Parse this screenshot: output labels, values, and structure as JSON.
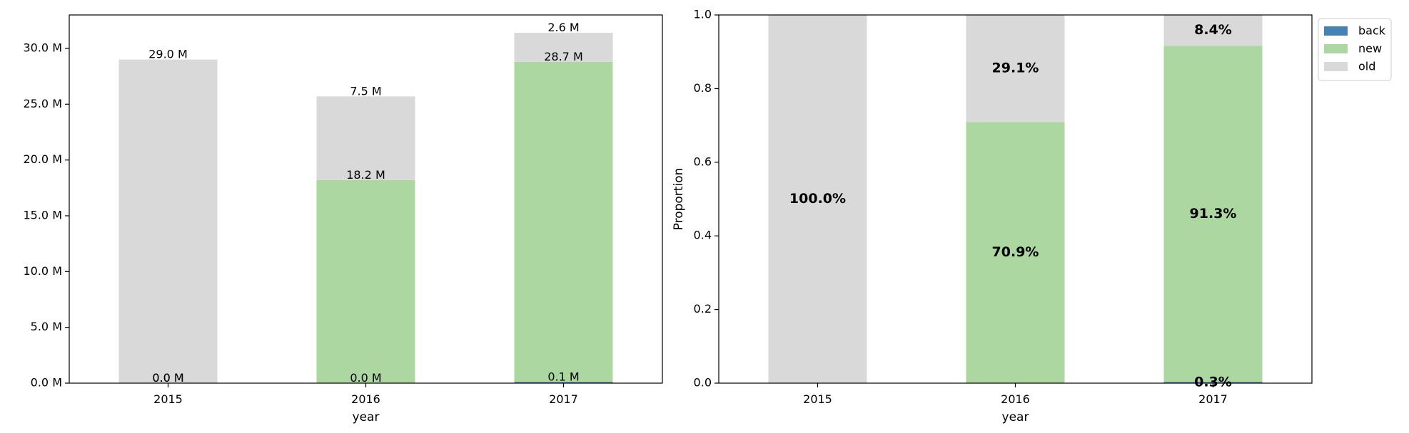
{
  "chart_data": [
    {
      "type": "bar",
      "stacked": true,
      "categories": [
        "2015",
        "2016",
        "2017"
      ],
      "xlabel": "year",
      "ylabel": "",
      "ylim": [
        0,
        33
      ],
      "yticks": [
        0,
        5,
        10,
        15,
        20,
        25,
        30
      ],
      "ytick_labels": [
        "0.0 M",
        "5.0 M",
        "10.0 M",
        "15.0 M",
        "20.0 M",
        "25.0 M",
        "30.0 M"
      ],
      "series": [
        {
          "key": "back",
          "color": "#4682b4",
          "values": [
            0.0,
            0.0,
            0.1
          ],
          "labels": [
            "0.0 M",
            "0.0 M",
            "0.1 M"
          ]
        },
        {
          "key": "new",
          "color": "#acd7a1",
          "values": [
            0.0,
            18.2,
            28.7
          ],
          "labels": [
            "0.0 M",
            "18.2 M",
            "28.7 M"
          ]
        },
        {
          "key": "old",
          "color": "#d9d9d9",
          "values": [
            29.0,
            7.5,
            2.6
          ],
          "labels": [
            "29.0 M",
            "7.5 M",
            "2.6 M"
          ]
        }
      ],
      "grid": false,
      "legend": false
    },
    {
      "type": "bar",
      "stacked": true,
      "categories": [
        "2015",
        "2016",
        "2017"
      ],
      "xlabel": "year",
      "ylabel": "Proportion",
      "ylim": [
        0,
        1.0
      ],
      "yticks": [
        0.0,
        0.2,
        0.4,
        0.6,
        0.8,
        1.0
      ],
      "ytick_labels": [
        "0.0",
        "0.2",
        "0.4",
        "0.6",
        "0.8",
        "1.0"
      ],
      "series": [
        {
          "name": "back",
          "color": "#4682b4",
          "values": [
            0.0,
            0.0,
            0.003
          ],
          "labels": [
            "",
            "",
            "0.3%"
          ]
        },
        {
          "name": "new",
          "color": "#acd7a1",
          "values": [
            0.0,
            0.709,
            0.913
          ],
          "labels": [
            "",
            "70.9%",
            "91.3%"
          ]
        },
        {
          "name": "old",
          "color": "#d9d9d9",
          "values": [
            1.0,
            0.291,
            0.084
          ],
          "labels": [
            "100.0%",
            "29.1%",
            "8.4%"
          ]
        }
      ],
      "grid": false,
      "legend": "outside-top-right"
    }
  ]
}
